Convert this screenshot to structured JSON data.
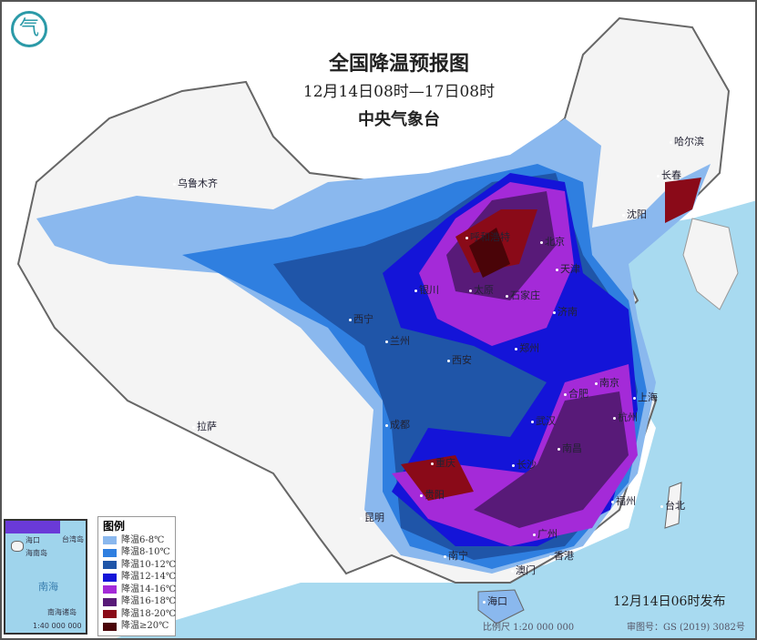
{
  "header": {
    "title": "全国降温预报图",
    "period": "12月14日08时—17日08时",
    "issuer": "中央气象台",
    "logo_icon": "cma-logo"
  },
  "legend": {
    "title": "图例",
    "items": [
      {
        "label": "降温6-8℃",
        "color": "#8ab8ee"
      },
      {
        "label": "降温8-10℃",
        "color": "#2f7fe0"
      },
      {
        "label": "降温10-12℃",
        "color": "#1f55a8"
      },
      {
        "label": "降温12-14℃",
        "color": "#1414d8"
      },
      {
        "label": "降温14-16℃",
        "color": "#a42ad8"
      },
      {
        "label": "降温16-18℃",
        "color": "#581a78"
      },
      {
        "label": "降温18-20℃",
        "color": "#8a0a18"
      },
      {
        "label": "降温≥20℃",
        "color": "#4a0408"
      }
    ]
  },
  "cities": [
    "乌鲁木齐",
    "拉萨",
    "西宁",
    "兰州",
    "银川",
    "呼和浩特",
    "太原",
    "石家庄",
    "北京",
    "天津",
    "济南",
    "郑州",
    "西安",
    "成都",
    "重庆",
    "贵阳",
    "昆明",
    "南宁",
    "长沙",
    "武汉",
    "合肥",
    "南京",
    "上海",
    "杭州",
    "南昌",
    "福州",
    "台北",
    "广州",
    "香港",
    "澳门",
    "海口",
    "沈阳",
    "长春",
    "哈尔滨"
  ],
  "inset": {
    "labels": [
      "海口",
      "海南岛",
      "台湾岛",
      "南海",
      "南海诸岛",
      "1:40 000 000"
    ]
  },
  "footer": {
    "published": "12月14日06时发布",
    "scale": "比例尺 1:20 000 000",
    "map_number": "审图号：GS (2019) 3082号"
  },
  "colors": {
    "sea": "#a8daf0",
    "land": "#f4f4f4"
  }
}
